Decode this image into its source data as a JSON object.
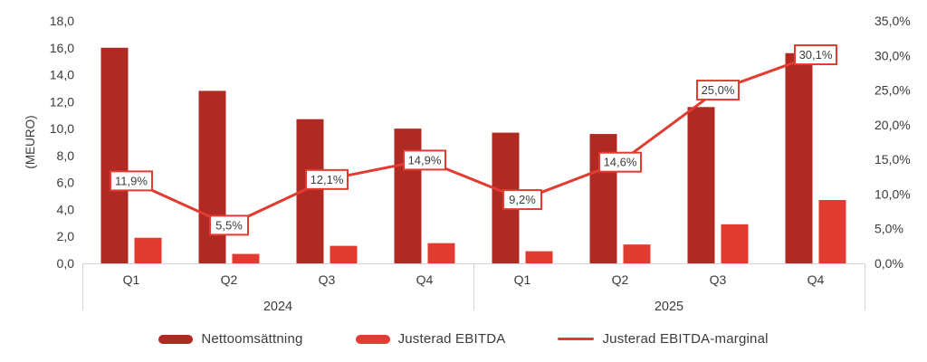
{
  "chart_data": {
    "type": "bar",
    "subtype": "combo-bar-line-dual-axis",
    "categories": [
      "Q1",
      "Q2",
      "Q3",
      "Q4",
      "Q1",
      "Q2",
      "Q3",
      "Q4"
    ],
    "year_groups": [
      {
        "label": "2024",
        "start": 0,
        "count": 4
      },
      {
        "label": "2025",
        "start": 4,
        "count": 4
      }
    ],
    "left_axis": {
      "title": "(MEURO)",
      "min": 0,
      "max": 18,
      "step": 2,
      "tick_labels": [
        "18,0",
        "16,0",
        "14,0",
        "12,0",
        "10,0",
        "8,0",
        "6,0",
        "4,0",
        "2,0",
        "0,0"
      ]
    },
    "right_axis": {
      "min": 0,
      "max": 35,
      "step": 5,
      "tick_labels": [
        "35,0%",
        "30,0%",
        "25,0%",
        "20,0%",
        "15,0%",
        "10,0%",
        "5,0%",
        "0,0%"
      ]
    },
    "series": [
      {
        "name": "Nettoomsättning",
        "type": "bar",
        "axis": "left",
        "color": "#AF2A23",
        "values": [
          16.0,
          12.8,
          10.7,
          10.0,
          9.7,
          9.6,
          11.6,
          15.6
        ]
      },
      {
        "name": "Justerad EBITDA",
        "type": "bar",
        "axis": "left",
        "color": "#E23B31",
        "values": [
          1.9,
          0.7,
          1.3,
          1.5,
          0.9,
          1.4,
          2.9,
          4.7
        ]
      },
      {
        "name": "Justerad EBITDA-marginal",
        "type": "line",
        "axis": "right",
        "color": "#E23B31",
        "values": [
          11.9,
          5.5,
          12.1,
          14.9,
          9.2,
          14.6,
          25.0,
          30.1
        ],
        "point_labels": [
          "11,9%",
          "5,5%",
          "12,1%",
          "14,9%",
          "9,2%",
          "14,6%",
          "25,0%",
          "30,1%"
        ]
      }
    ],
    "grid": "off",
    "legend_position": "bottom"
  },
  "colors": {
    "bar_dark_red": "#AF2A23",
    "bar_bright_red": "#E23B31",
    "line_red": "#E23B31",
    "axis_text": "#3B3B3A",
    "axis_line": "#D4D4D4",
    "label_box_fill": "#FFFFFF",
    "background": "#FFFFFF"
  }
}
